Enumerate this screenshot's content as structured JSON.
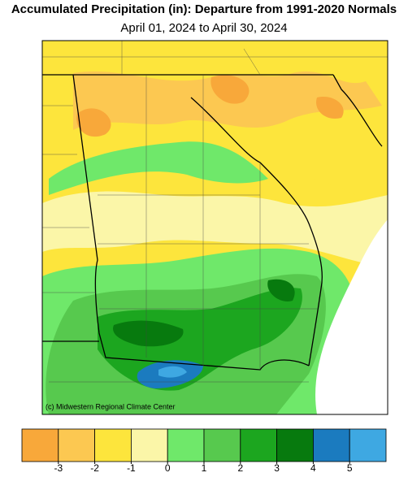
{
  "header": {
    "title": "Accumulated Precipitation (in): Departure from 1991-2020 Normals",
    "subtitle": "April 01, 2024 to April 30, 2024"
  },
  "map": {
    "credit": "(c) Midwestern Regional Climate Center"
  },
  "legend": {
    "colors": [
      "#f8a83a",
      "#fcc851",
      "#fde53c",
      "#fbf6a8",
      "#6fe86a",
      "#57c94e",
      "#1ca61f",
      "#077a0e",
      "#1b7bbf",
      "#3ea8e2"
    ],
    "range": [
      -4,
      6
    ],
    "ticks": [
      -3,
      -2,
      -1,
      0,
      1,
      2,
      3,
      4,
      5
    ]
  }
}
